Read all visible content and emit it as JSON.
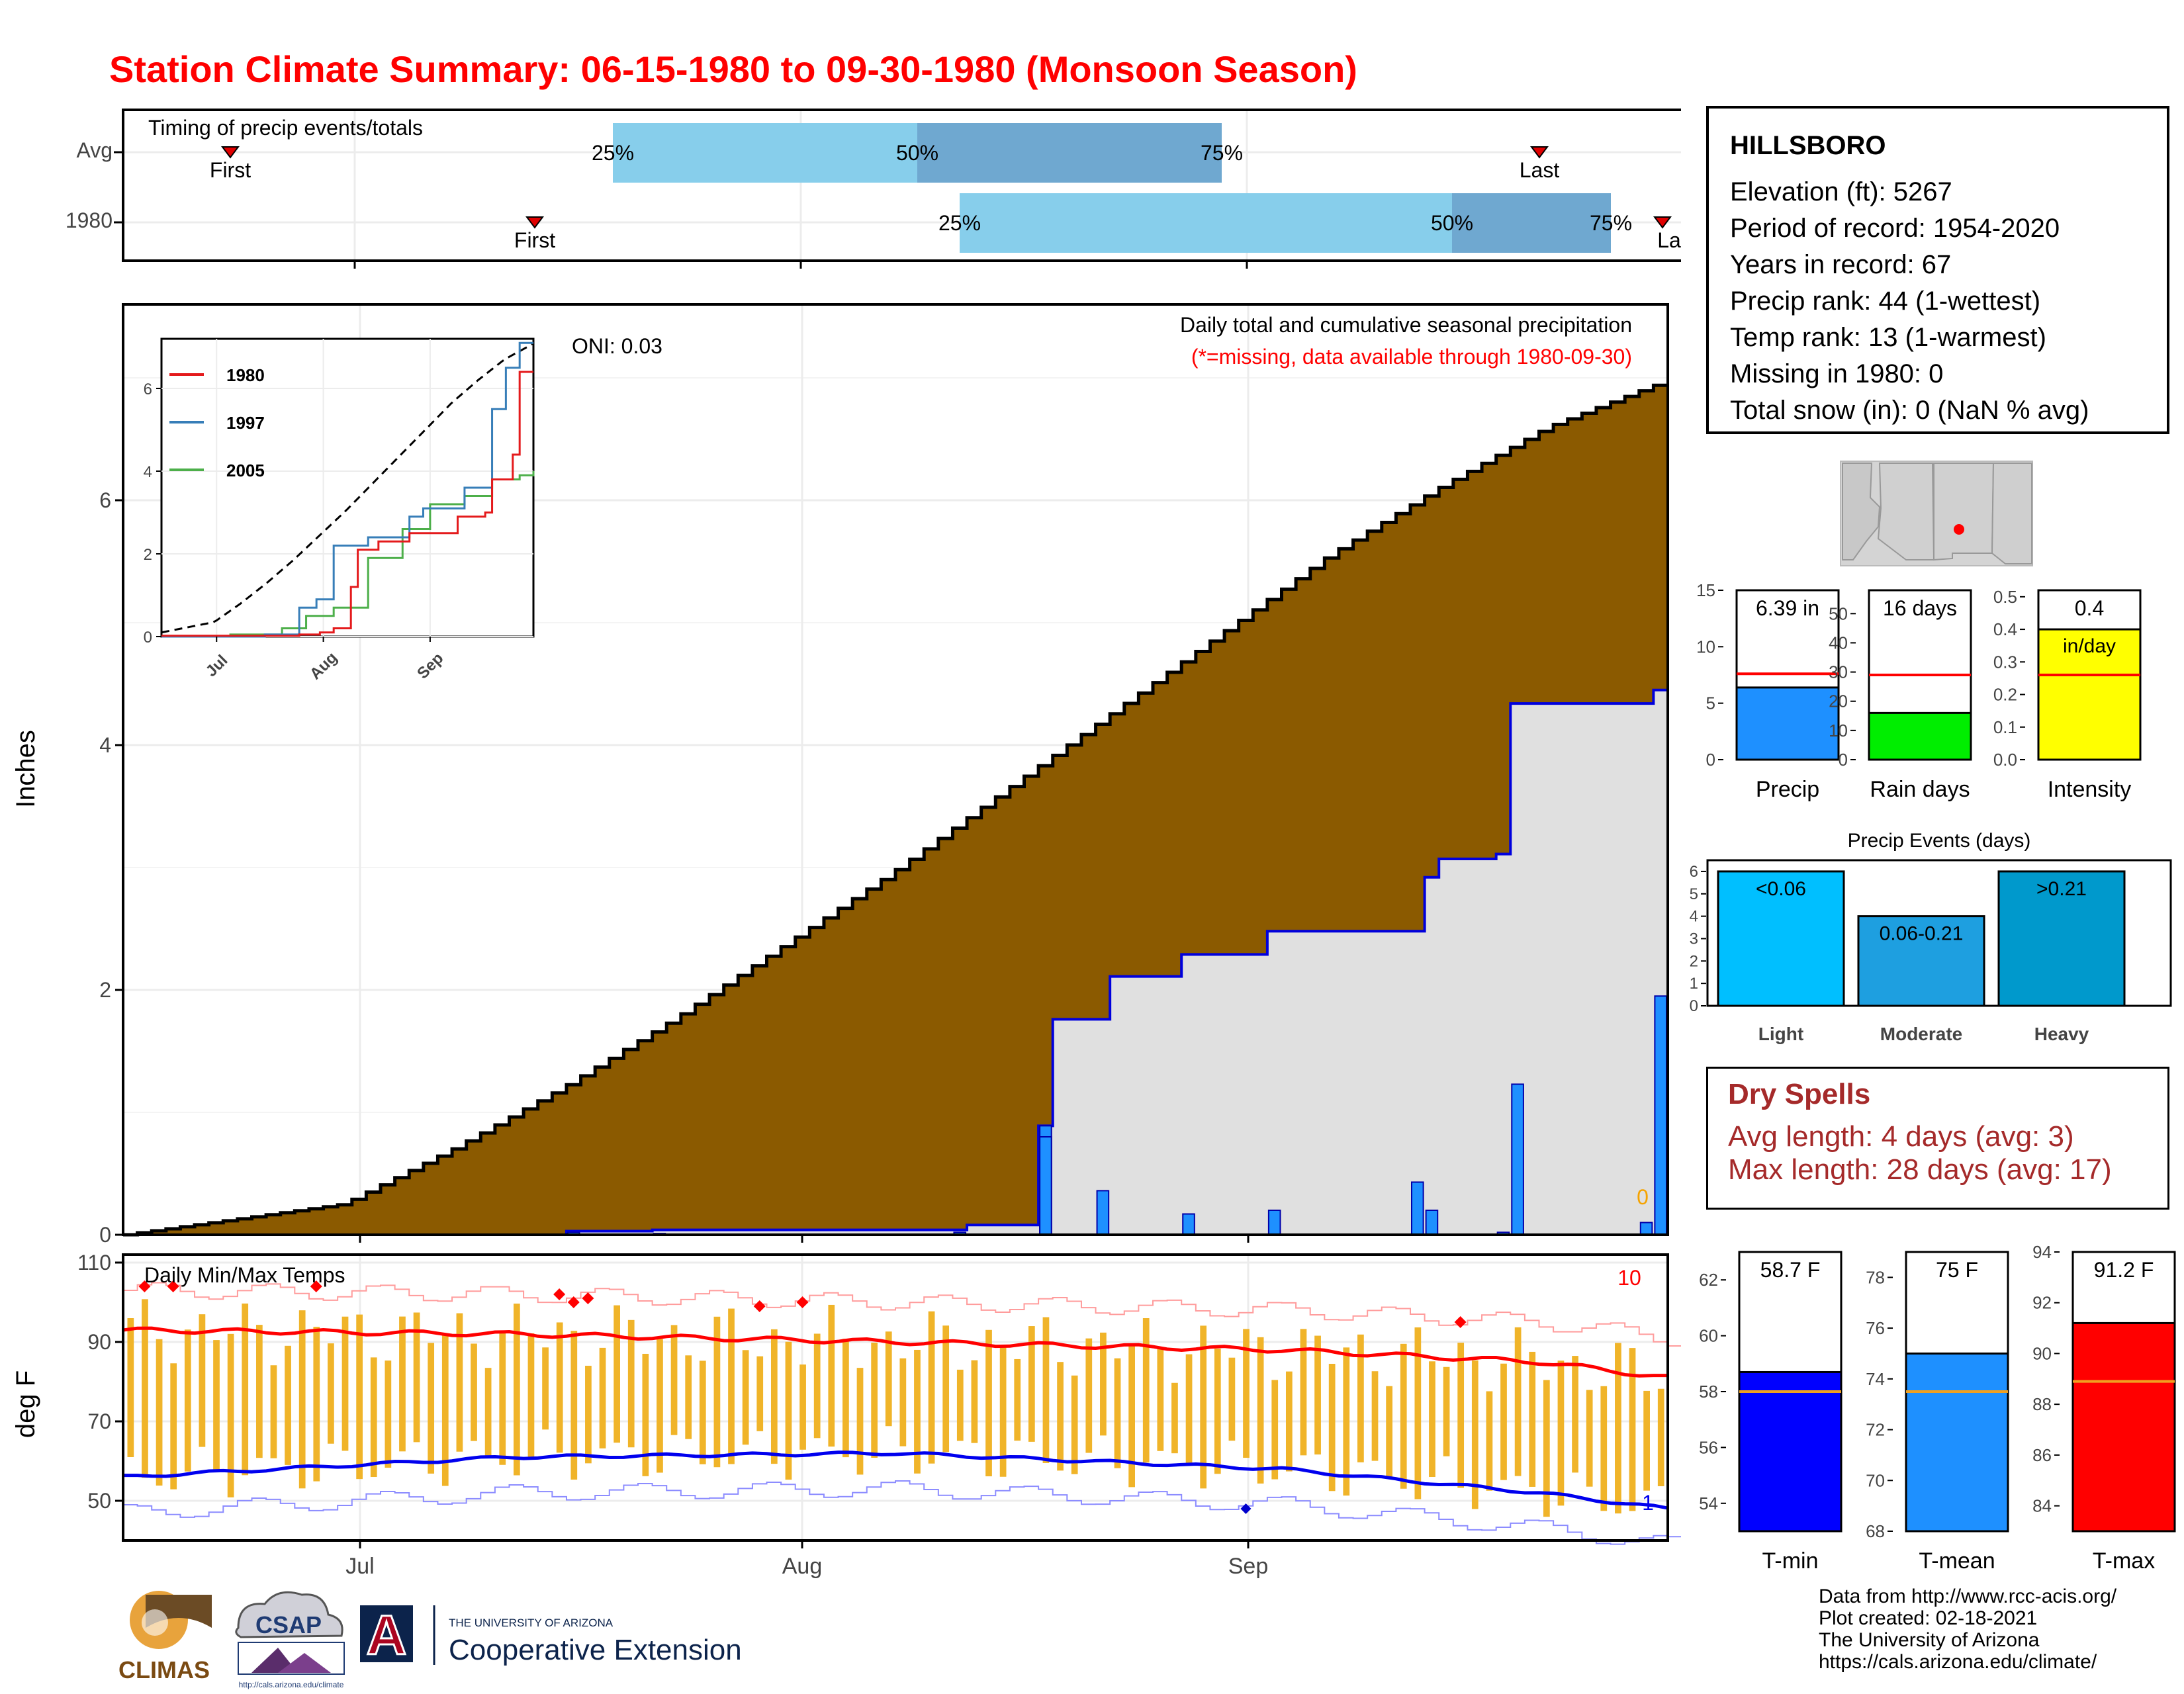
{
  "title": "Station Climate Summary: 06-15-1980 to 09-30-1980 (Monsoon Season)",
  "colors": {
    "title": "#ff0000",
    "precip_brown": "#8b5a00",
    "observed_fill": "#e0e0e0",
    "bar_blue": "#1e90ff",
    "light_blue": "#87ceeb",
    "mid_blue": "#6fa8d0",
    "temp_bar": "#f0b429",
    "tmax_line": "#ff0000",
    "tmin_line": "#0000ee",
    "dry": "#a52a2a"
  },
  "timing": {
    "label": "Timing of precip events/totals",
    "row_labels": [
      "Avg",
      "1980"
    ],
    "marker_first": "First",
    "marker_last": "Last",
    "marker_last_truncated": "Las",
    "pct_labels": [
      "25%",
      "50%",
      "75%"
    ]
  },
  "station": {
    "name": "HILLSBORO",
    "lines": [
      "Elevation (ft): 5267",
      "Period of record: 1954-2020",
      "Years in record: 67",
      "Precip rank: 44 (1-wettest)",
      "Temp rank: 13 (1-warmest)",
      "Missing in 1980: 0",
      "Total snow (in): 0 (NaN % avg)"
    ]
  },
  "main_chart": {
    "ylabel": "Inches",
    "title": "Daily total and cumulative seasonal precipitation",
    "subtitle": "(*=missing, data available through 1980-09-30)",
    "oni": "ONI: 0.03",
    "zero_label": "0",
    "y_ticks": [
      "0",
      "2",
      "4",
      "6"
    ],
    "x_ticks": [
      "Jul",
      "Aug",
      "Sep"
    ]
  },
  "inset": {
    "legend": [
      "1980",
      "1997",
      "2005"
    ],
    "y_ticks": [
      "0",
      "2",
      "4",
      "6"
    ],
    "x_ticks": [
      "Jul",
      "Aug",
      "Sep"
    ]
  },
  "temp_chart": {
    "ylabel": "deg F",
    "title": "Daily Min/Max Temps",
    "count_top": "10",
    "count_bottom": "1",
    "y_ticks": [
      "110",
      "90",
      "70",
      "50"
    ],
    "x_ticks": [
      "Jul",
      "Aug",
      "Sep"
    ]
  },
  "mini": {
    "precip": {
      "value_label": "6.39 in",
      "xlabel": "Precip",
      "ticks": [
        "0",
        "5",
        "10",
        "15"
      ]
    },
    "raindays": {
      "value_label": "16 days",
      "xlabel": "Rain days",
      "ticks": [
        "0",
        "10",
        "20",
        "30",
        "40",
        "50"
      ]
    },
    "intensity": {
      "value_label": "0.4",
      "unit_label": "in/day",
      "xlabel": "Intensity",
      "ticks": [
        "0.0",
        "0.1",
        "0.2",
        "0.3",
        "0.4",
        "0.5"
      ]
    },
    "events": {
      "title": "Precip Events (days)",
      "labels": [
        "<0.06",
        "0.06-0.21",
        ">0.21"
      ],
      "categories": [
        "Light",
        "Moderate",
        "Heavy"
      ],
      "ticks": [
        "0",
        "1",
        "2",
        "3",
        "4",
        "5",
        "6"
      ]
    },
    "tmin": {
      "value_label": "58.7 F",
      "xlabel": "T-min",
      "ticks": [
        "54",
        "56",
        "58",
        "60",
        "62"
      ]
    },
    "tmean": {
      "value_label": "75 F",
      "xlabel": "T-mean",
      "ticks": [
        "68",
        "70",
        "72",
        "74",
        "76",
        "78"
      ]
    },
    "tmax": {
      "value_label": "91.2 F",
      "xlabel": "T-max",
      "ticks": [
        "84",
        "86",
        "88",
        "90",
        "92",
        "94"
      ]
    }
  },
  "dry_spells": {
    "title": "Dry Spells",
    "avg": "Avg length: 4 days (avg: 3)",
    "max": "Max length: 28 days (avg: 17)"
  },
  "footer": {
    "lines": [
      "Data from http://www.rcc-acis.org/",
      "Plot created: 02-18-2021",
      "The University of Arizona",
      "https://cals.arizona.edu/climate/"
    ]
  },
  "logos": {
    "climas": "CLIMAS",
    "csap": "CSAP",
    "csap_url": "http://cals.arizona.edu/climate",
    "ua_top": "THE UNIVERSITY OF ARIZONA",
    "ua_bottom": "Cooperative Extension",
    "ua_letter": "A"
  },
  "chart_data": [
    {
      "type": "area",
      "title": "Daily total and cumulative seasonal precipitation",
      "ylabel": "Inches",
      "x_range": [
        "1980-06-15",
        "1980-09-30"
      ],
      "ylim": [
        0,
        7.6
      ],
      "series": [
        {
          "name": "avg",
          "cumulative_approx": [
            [
              0,
              0
            ],
            [
              20,
              0.25
            ],
            [
              30,
              0.7
            ],
            [
              40,
              1.2
            ],
            [
              50,
              1.75
            ],
            [
              60,
              2.35
            ],
            [
              70,
              2.95
            ],
            [
              80,
              3.6
            ],
            [
              90,
              4.25
            ],
            [
              100,
              4.9
            ],
            [
              110,
              5.55
            ],
            [
              120,
              6.1
            ],
            [
              130,
              6.6
            ],
            [
              140,
              6.95
            ],
            [
              141,
              7.0
            ]
          ]
        },
        {
          "name": "1980",
          "cumulative_steps": [
            [
              0,
              0
            ],
            [
              40,
              0.03
            ],
            [
              48,
              0.04
            ],
            [
              76,
              0.08
            ],
            [
              83,
              0.89
            ],
            [
              84,
              1.76
            ],
            [
              89,
              2.11
            ],
            [
              96,
              2.29
            ],
            [
              104,
              2.48
            ],
            [
              118,
              2.92
            ],
            [
              119,
              3.07
            ],
            [
              125,
              3.11
            ],
            [
              126,
              4.34
            ],
            [
              139,
              4.45
            ],
            [
              140,
              6.39
            ]
          ]
        },
        {
          "name": "daily_1980",
          "daily": [
            [
              40,
              0.02
            ],
            [
              48,
              0.01
            ],
            [
              76,
              0.02
            ],
            [
              83,
              0.89
            ],
            [
              84,
              0.8
            ],
            [
              89,
              0.36
            ],
            [
              96,
              0.17
            ],
            [
              104,
              0.2
            ],
            [
              118,
              0.43
            ],
            [
              119,
              0.2
            ],
            [
              125,
              0.02
            ],
            [
              126,
              1.23
            ],
            [
              139,
              0.1
            ],
            [
              140,
              1.95
            ],
            [
              145,
              0.02
            ]
          ]
        }
      ]
    },
    {
      "type": "line",
      "title": "inset cumulative",
      "legend": [
        "1980",
        "1997",
        "2005"
      ],
      "ylim": [
        0,
        7.2
      ]
    },
    {
      "type": "bar",
      "title": "Daily Min/Max Temps",
      "ylabel": "deg F",
      "ylim": [
        40,
        110
      ],
      "tmax_avg_approx": [
        [
          0,
          93
        ],
        [
          30,
          92
        ],
        [
          60,
          90
        ],
        [
          90,
          88
        ],
        [
          110,
          85
        ],
        [
          120,
          81
        ]
      ],
      "tmin_avg_approx": [
        [
          0,
          56
        ],
        [
          30,
          61
        ],
        [
          60,
          62
        ],
        [
          90,
          58
        ],
        [
          110,
          52
        ],
        [
          120,
          48
        ]
      ]
    },
    {
      "type": "bar",
      "categories": [
        "Precip"
      ],
      "values": [
        6.39
      ],
      "avg": 7.6,
      "ylim": [
        0,
        15
      ]
    },
    {
      "type": "bar",
      "categories": [
        "Rain days"
      ],
      "values": [
        16
      ],
      "avg": 29,
      "ylim": [
        0,
        58
      ]
    },
    {
      "type": "bar",
      "categories": [
        "Intensity"
      ],
      "values": [
        0.4
      ],
      "avg": 0.26,
      "ylim": [
        0,
        0.52
      ]
    },
    {
      "type": "bar",
      "title": "Precip Events (days)",
      "categories": [
        "Light",
        "Moderate",
        "Heavy"
      ],
      "values": [
        6,
        4,
        6
      ],
      "ylim": [
        0,
        6.5
      ]
    },
    {
      "type": "bar",
      "categories": [
        "T-min"
      ],
      "values": [
        58.7
      ],
      "avg": 58,
      "ylim": [
        53,
        63
      ]
    },
    {
      "type": "bar",
      "categories": [
        "T-mean"
      ],
      "values": [
        75
      ],
      "avg": 73.5,
      "ylim": [
        68,
        79
      ]
    },
    {
      "type": "bar",
      "categories": [
        "T-max"
      ],
      "values": [
        91.2
      ],
      "avg": 88.9,
      "ylim": [
        83,
        94
      ]
    }
  ]
}
